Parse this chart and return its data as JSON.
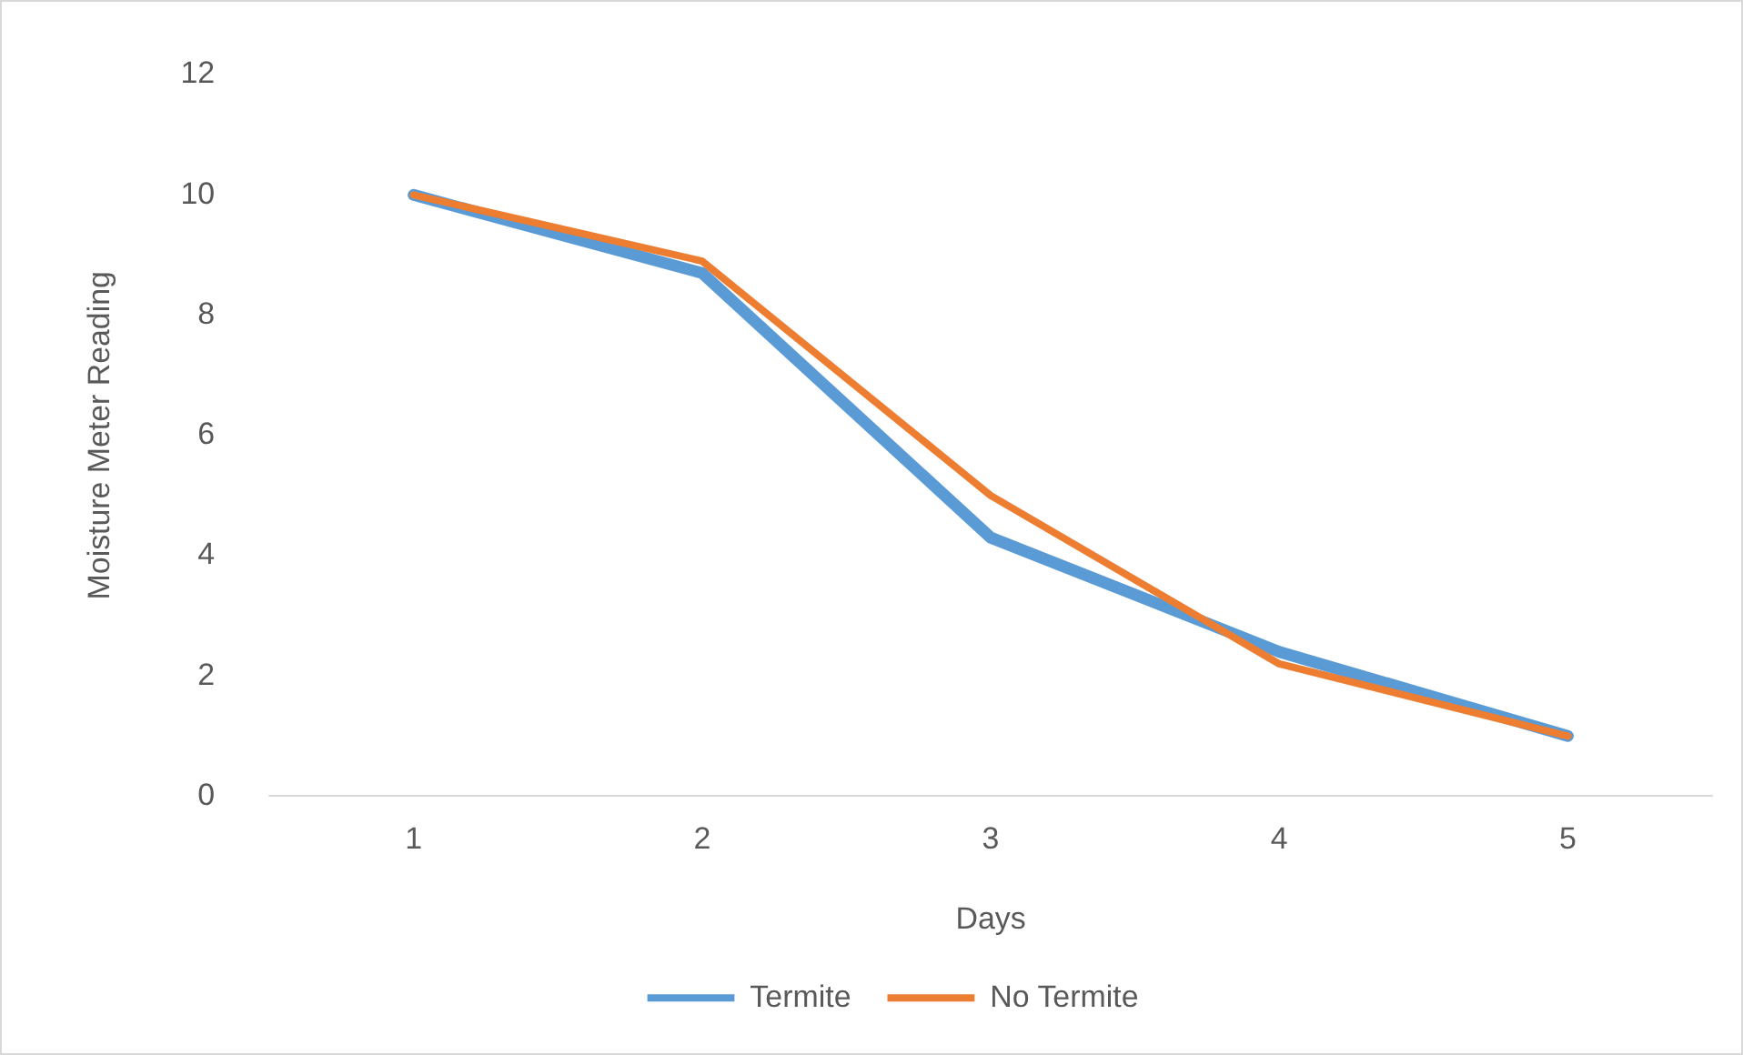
{
  "chart_data": {
    "type": "line",
    "xlabel": "Days",
    "ylabel": "Moisture Meter Reading",
    "categories": [
      "1",
      "2",
      "3",
      "4",
      "5"
    ],
    "series": [
      {
        "name": "Termite",
        "color": "#5b9bd5",
        "values": [
          10,
          8.7,
          4.3,
          2.4,
          1.0
        ]
      },
      {
        "name": "No Termite",
        "color": "#ed7d31",
        "values": [
          10,
          8.9,
          5.0,
          2.2,
          1.0
        ]
      }
    ],
    "ylim": [
      0,
      12
    ],
    "yticks": [
      0,
      2,
      4,
      6,
      8,
      10,
      12
    ],
    "grid": false,
    "legend": "bottom",
    "marker": "none",
    "line_style": "solid"
  }
}
